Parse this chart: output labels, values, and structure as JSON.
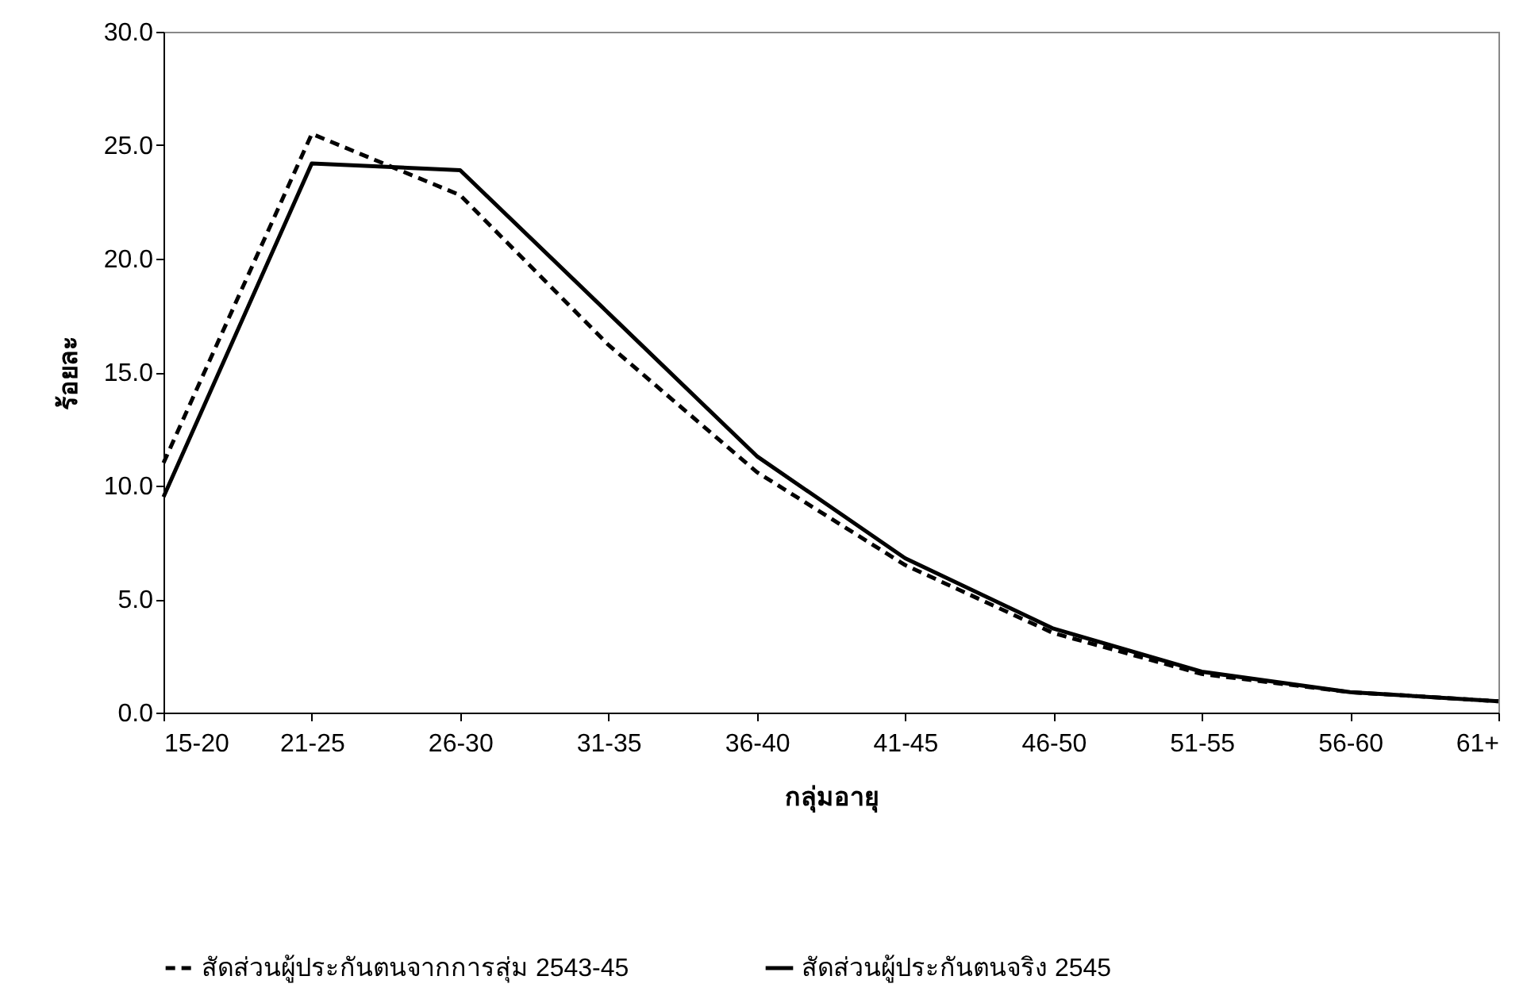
{
  "chart_data": {
    "type": "line",
    "xlabel": "กลุ่มอายุ",
    "ylabel": "ร้อยละ",
    "categories": [
      "15-20",
      "21-25",
      "26-30",
      "31-35",
      "36-40",
      "41-45",
      "46-50",
      "51-55",
      "56-60",
      "61+"
    ],
    "ylim": [
      0,
      30
    ],
    "yticks": [
      {
        "value": 0,
        "label": "0.0"
      },
      {
        "value": 5,
        "label": "5.0"
      },
      {
        "value": 10,
        "label": "10.0"
      },
      {
        "value": 15,
        "label": "15.0"
      },
      {
        "value": 20,
        "label": "20.0"
      },
      {
        "value": 25,
        "label": "25.0"
      },
      {
        "value": 30,
        "label": "30.0"
      }
    ],
    "series": [
      {
        "name": "สัดส่วนผู้ประกันตนจากการสุ่ม 2543-45",
        "color": "#000000",
        "line_style": "dashed",
        "values": [
          11.0,
          25.5,
          22.8,
          16.2,
          10.6,
          6.5,
          3.5,
          1.7,
          0.9,
          0.5
        ]
      },
      {
        "name": "สัดส่วนผู้ประกันตนจริง 2545",
        "color": "#000000",
        "line_style": "solid",
        "values": [
          9.5,
          24.2,
          23.9,
          17.6,
          11.3,
          6.8,
          3.7,
          1.8,
          0.9,
          0.5
        ]
      }
    ],
    "grid": false,
    "legend": "bottom",
    "marker": "none"
  }
}
